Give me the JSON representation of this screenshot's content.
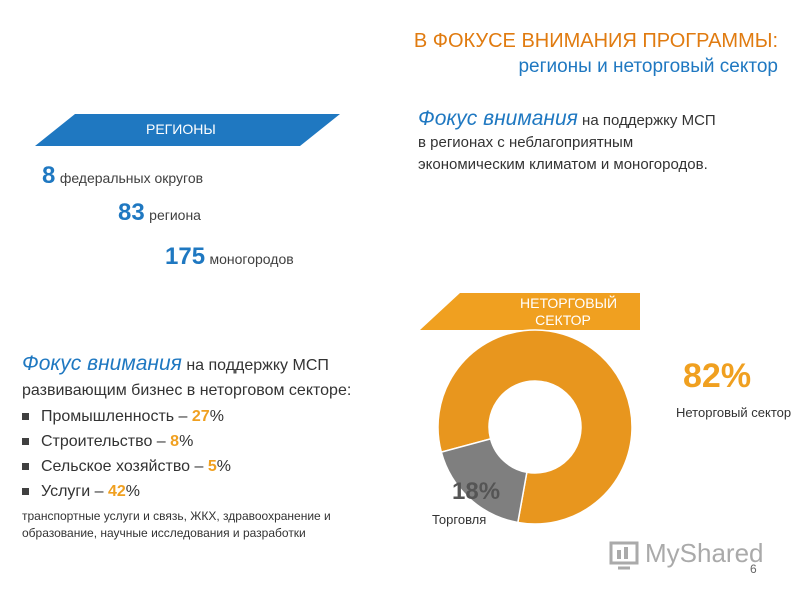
{
  "header": {
    "title": "В ФОКУСЕ ВНИМАНИЯ ПРОГРАММЫ:",
    "subtitle": "регионы и неторговый сектор"
  },
  "regions": {
    "banner": "РЕГИОНЫ",
    "stats": [
      {
        "number": 8,
        "label": "федеральных округов"
      },
      {
        "number": 83,
        "label": "региона"
      },
      {
        "number": 175,
        "label": "моногородов"
      }
    ]
  },
  "focus_regions": {
    "lead": "Фокус внимания",
    "lines": [
      "на поддержку МСП",
      "в регионах с неблагоприятным",
      "экономическим климатом и моногородов."
    ]
  },
  "sector": {
    "banner": [
      "НЕТОРГОВЫЙ",
      "СЕКТОР"
    ]
  },
  "focus_sector": {
    "lead": "Фокус внимания",
    "lines": [
      "на поддержку МСП",
      "развивающим бизнес в неторговом секторе:"
    ],
    "items": [
      {
        "label": "Промышленность –",
        "value": 27,
        "unit": "%"
      },
      {
        "label": "Строительство –",
        "value": 8,
        "unit": "%"
      },
      {
        "label": "Сельское хозяйство –",
        "value": 5,
        "unit": "%"
      },
      {
        "label": "Услуги –",
        "value": 42,
        "unit": "%"
      }
    ],
    "note": [
      "транспортные услуги и связь, ЖКХ, здравоохранение и",
      "образование, научные исследования и разработки"
    ]
  },
  "chart_data": {
    "type": "donut",
    "categories": [
      "Неторговый сектор",
      "Торговля"
    ],
    "values": [
      82,
      18
    ],
    "value_labels": [
      "82%",
      "18%"
    ],
    "colors": [
      "#e8961e",
      "#7f7f7f"
    ]
  },
  "footer": {
    "watermark": "MyShared",
    "page": "6"
  }
}
